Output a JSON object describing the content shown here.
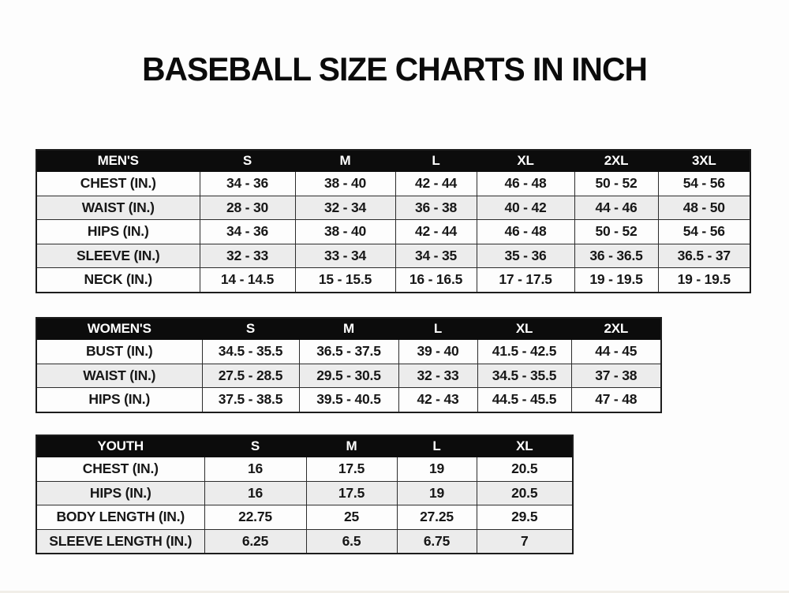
{
  "title": "BASEBALL SIZE CHARTS IN INCH",
  "tables": [
    {
      "name": "MEN'S",
      "sizes": [
        "S",
        "M",
        "L",
        "XL",
        "2XL",
        "3XL"
      ],
      "rows": [
        {
          "label": "CHEST (IN.)",
          "values": [
            "34 - 36",
            "38 - 40",
            "42 - 44",
            "46 - 48",
            "50 - 52",
            "54 - 56"
          ]
        },
        {
          "label": "WAIST (IN.)",
          "values": [
            "28 - 30",
            "32 - 34",
            "36 - 38",
            "40 - 42",
            "44 - 46",
            "48 - 50"
          ]
        },
        {
          "label": "HIPS (IN.)",
          "values": [
            "34 - 36",
            "38 - 40",
            "42 - 44",
            "46 - 48",
            "50 - 52",
            "54 - 56"
          ]
        },
        {
          "label": "SLEEVE (IN.)",
          "values": [
            "32 - 33",
            "33 - 34",
            "34 - 35",
            "35 - 36",
            "36 - 36.5",
            "36.5 - 37"
          ]
        },
        {
          "label": "NECK (IN.)",
          "values": [
            "14 - 14.5",
            "15 - 15.5",
            "16 - 16.5",
            "17 - 17.5",
            "19 - 19.5",
            "19 - 19.5"
          ]
        }
      ]
    },
    {
      "name": "WOMEN'S",
      "sizes": [
        "S",
        "M",
        "L",
        "XL",
        "2XL"
      ],
      "rows": [
        {
          "label": "BUST (IN.)",
          "values": [
            "34.5 - 35.5",
            "36.5 - 37.5",
            "39 - 40",
            "41.5 - 42.5",
            "44 - 45"
          ]
        },
        {
          "label": "WAIST (IN.)",
          "values": [
            "27.5 - 28.5",
            "29.5 - 30.5",
            "32 - 33",
            "34.5 - 35.5",
            "37 - 38"
          ]
        },
        {
          "label": "HIPS (IN.)",
          "values": [
            "37.5 - 38.5",
            "39.5 - 40.5",
            "42 - 43",
            "44.5 - 45.5",
            "47 - 48"
          ]
        }
      ]
    },
    {
      "name": "YOUTH",
      "sizes": [
        "S",
        "M",
        "L",
        "XL"
      ],
      "rows": [
        {
          "label": "CHEST (IN.)",
          "values": [
            "16",
            "17.5",
            "19",
            "20.5"
          ]
        },
        {
          "label": "HIPS (IN.)",
          "values": [
            "16",
            "17.5",
            "19",
            "20.5"
          ]
        },
        {
          "label": "BODY LENGTH (IN.)",
          "values": [
            "22.75",
            "25",
            "27.25",
            "29.5"
          ]
        },
        {
          "label": "SLEEVE LENGTH (IN.)",
          "values": [
            "6.25",
            "6.5",
            "6.75",
            "7"
          ]
        }
      ]
    }
  ],
  "colors": {
    "header_bg": "#0c0c0c",
    "header_text": "#ffffff",
    "row_bg": "#fdfdfd",
    "row_alt_bg": "#ececec",
    "border": "#2c2c2c",
    "text": "#171717",
    "page_bg": "#fdfdfd"
  }
}
